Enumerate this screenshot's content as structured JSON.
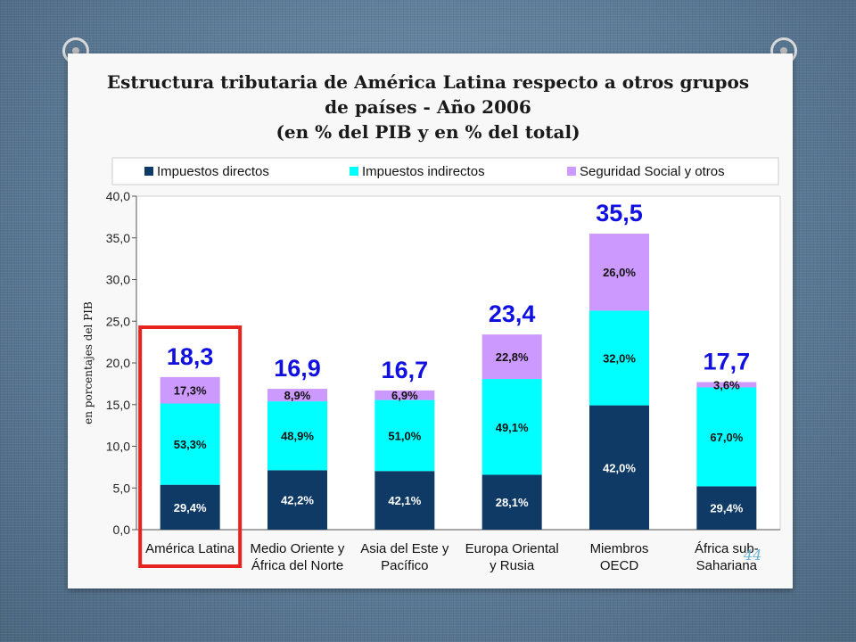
{
  "slide": {
    "title_lines": [
      "Estructura tributaria de América Latina respecto a otros grupos",
      "de países - Año 2006",
      "(en % del PIB y en % del total)"
    ],
    "page_number": "44"
  },
  "chart_data": {
    "type": "bar",
    "stacked": true,
    "title": "",
    "xlabel": "",
    "ylabel": "en porcentajes del PIB",
    "ylim": [
      0,
      40
    ],
    "yticks": [
      "0,0",
      "5,0",
      "10,0",
      "15,0",
      "20,0",
      "25,0",
      "30,0",
      "35,0",
      "40,0"
    ],
    "grid": false,
    "legend_position": "top",
    "categories": [
      [
        "América Latina"
      ],
      [
        "Medio Oriente y",
        "África del Norte"
      ],
      [
        "Asia del Este y",
        "Pacífico"
      ],
      [
        "Europa Oriental",
        "y Rusia"
      ],
      [
        "Miembros",
        "OECD"
      ],
      [
        "África sub-",
        "Sahariana"
      ]
    ],
    "totals": [
      18.3,
      16.9,
      16.7,
      23.4,
      35.5,
      17.7
    ],
    "total_labels": [
      "18,3",
      "16,9",
      "16,7",
      "23,4",
      "35,5",
      "17,7"
    ],
    "series": [
      {
        "name": "Impuestos directos",
        "color": "#0f3a66",
        "label_color": "#ffffff",
        "values": [
          5.38,
          7.13,
          7.03,
          6.58,
          14.91,
          5.2
        ],
        "share_labels": [
          "29,4%",
          "42,2%",
          "42,1%",
          "28,1%",
          "42,0%",
          "29,4%"
        ]
      },
      {
        "name": "Impuestos indirectos",
        "color": "#00ffff",
        "label_color": "#111111",
        "values": [
          9.75,
          8.26,
          8.52,
          11.49,
          11.36,
          11.86
        ],
        "share_labels": [
          "53,3%",
          "48,9%",
          "51,0%",
          "49,1%",
          "32,0%",
          "67,0%"
        ]
      },
      {
        "name": "Seguridad Social y otros",
        "color": "#cc99ff",
        "label_color": "#111111",
        "values": [
          3.17,
          1.5,
          1.15,
          5.34,
          9.23,
          0.64
        ],
        "share_labels": [
          "17,3%",
          "8,9%",
          "6,9%",
          "22,8%",
          "26,0%",
          "3,6%"
        ]
      }
    ],
    "highlight_category": "América Latina",
    "highlight_color": "#e8231f",
    "total_label_color": "#1010e0"
  }
}
